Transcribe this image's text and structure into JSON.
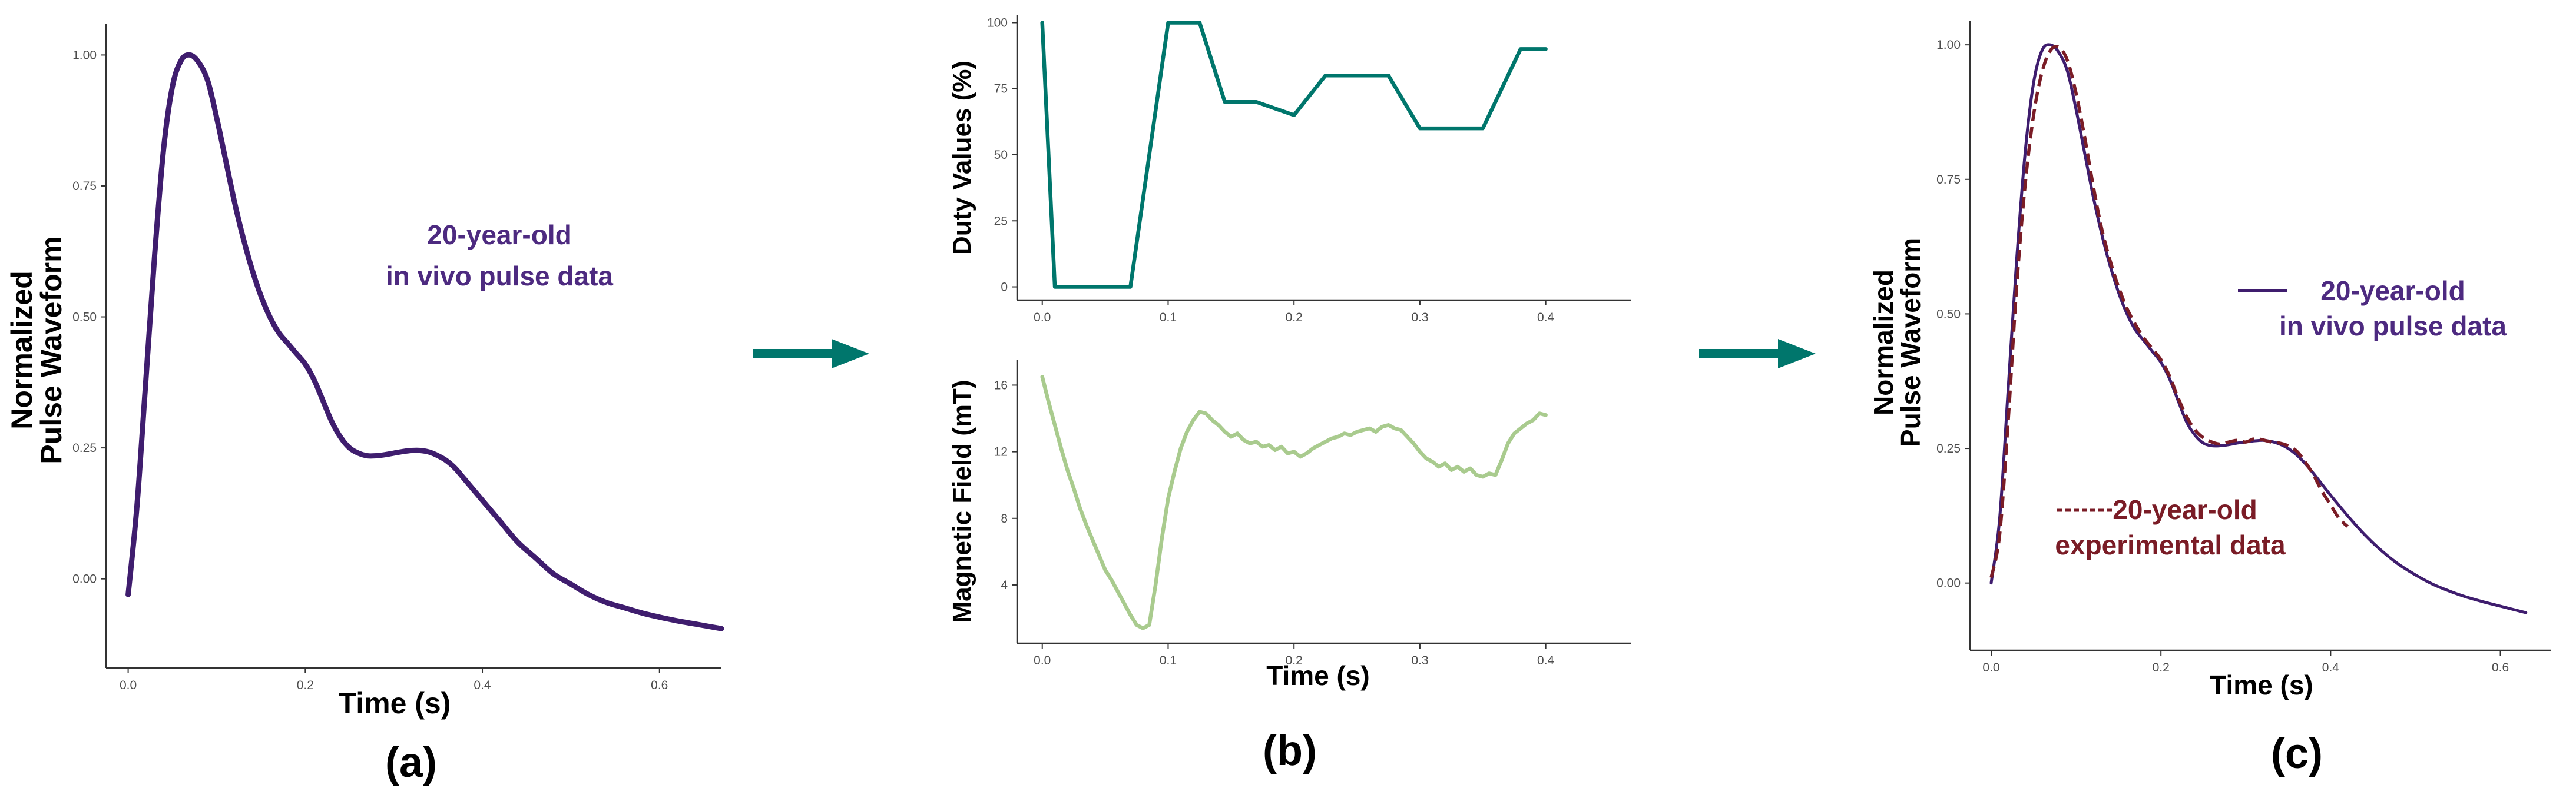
{
  "colors": {
    "purple": "#3f1d6e",
    "teal": "#00766c",
    "green": "#a9cb8e",
    "red": "#7a1c26",
    "annot_purple": "#4d2a80",
    "annot_red": "#7a1c26"
  },
  "panel_labels": [
    "(a)",
    "(b)",
    "(c)"
  ],
  "chart_data": [
    {
      "type": "line",
      "panel": "(a)",
      "xlabel": "Time (s)",
      "ylabel_lines": [
        "Normalized",
        "Pulse Waveform"
      ],
      "xlim": [
        -0.025,
        0.67
      ],
      "ylim": [
        -0.17,
        1.06
      ],
      "xticks": [
        0.0,
        0.2,
        0.4,
        0.6
      ],
      "xtick_labels": [
        "0.0",
        "0.2",
        "0.4",
        "0.6"
      ],
      "yticks": [
        0.0,
        0.25,
        0.5,
        0.75,
        1.0
      ],
      "ytick_labels": [
        "0.00",
        "0.25",
        "0.50",
        "0.75",
        "1.00"
      ],
      "annotation": [
        "20-year-old",
        "in vivo pulse data"
      ],
      "series": [
        {
          "name": "20-year-old in vivo pulse data",
          "x": [
            0.0,
            0.01,
            0.02,
            0.03,
            0.04,
            0.05,
            0.06,
            0.07,
            0.08,
            0.09,
            0.1,
            0.11,
            0.12,
            0.13,
            0.14,
            0.15,
            0.16,
            0.17,
            0.18,
            0.19,
            0.2,
            0.21,
            0.22,
            0.23,
            0.24,
            0.25,
            0.26,
            0.27,
            0.28,
            0.29,
            0.3,
            0.31,
            0.32,
            0.33,
            0.34,
            0.35,
            0.36,
            0.37,
            0.38,
            0.39,
            0.4,
            0.42,
            0.44,
            0.46,
            0.48,
            0.5,
            0.52,
            0.54,
            0.56,
            0.58,
            0.6,
            0.62,
            0.64,
            0.67
          ],
          "y": [
            -0.03,
            0.14,
            0.38,
            0.62,
            0.82,
            0.94,
            0.99,
            1.0,
            0.985,
            0.95,
            0.88,
            0.8,
            0.72,
            0.65,
            0.59,
            0.54,
            0.5,
            0.47,
            0.45,
            0.43,
            0.41,
            0.38,
            0.34,
            0.3,
            0.27,
            0.25,
            0.24,
            0.235,
            0.235,
            0.237,
            0.24,
            0.243,
            0.245,
            0.245,
            0.242,
            0.235,
            0.225,
            0.21,
            0.19,
            0.17,
            0.15,
            0.11,
            0.07,
            0.04,
            0.01,
            -0.01,
            -0.03,
            -0.045,
            -0.055,
            -0.065,
            -0.073,
            -0.08,
            -0.086,
            -0.095
          ]
        }
      ]
    },
    {
      "type": "line",
      "panel": "(b) top",
      "xlabel": "",
      "ylabel": "Duty Values (%)",
      "xlim": [
        -0.02,
        0.468
      ],
      "ylim": [
        -5,
        103
      ],
      "xticks": [
        0.0,
        0.1,
        0.2,
        0.3,
        0.4
      ],
      "xtick_labels": [
        "0.0",
        "0.1",
        "0.2",
        "0.3",
        "0.4"
      ],
      "yticks": [
        0,
        25,
        50,
        75,
        100
      ],
      "ytick_labels": [
        "0",
        "25",
        "50",
        "75",
        "100"
      ],
      "series": [
        {
          "name": "Duty Values",
          "x": [
            0.0,
            0.01,
            0.07,
            0.1,
            0.125,
            0.145,
            0.17,
            0.2,
            0.225,
            0.275,
            0.3,
            0.35,
            0.38,
            0.4
          ],
          "y": [
            100,
            0,
            0,
            100,
            100,
            70,
            70,
            65,
            80,
            80,
            60,
            60,
            90,
            90
          ]
        }
      ]
    },
    {
      "type": "line",
      "panel": "(b) bottom",
      "xlabel": "Time (s)",
      "ylabel": "Magnetic Field (mT)",
      "xlim": [
        -0.02,
        0.468
      ],
      "ylim": [
        0.5,
        17.5
      ],
      "xticks": [
        0.0,
        0.1,
        0.2,
        0.3,
        0.4
      ],
      "xtick_labels": [
        "0.0",
        "0.1",
        "0.2",
        "0.3",
        "0.4"
      ],
      "yticks": [
        4,
        8,
        12,
        16
      ],
      "ytick_labels": [
        "4",
        "8",
        "12",
        "16"
      ],
      "series": [
        {
          "name": "Magnetic Field",
          "x": [
            0.0,
            0.005,
            0.01,
            0.015,
            0.02,
            0.025,
            0.03,
            0.035,
            0.04,
            0.045,
            0.05,
            0.055,
            0.06,
            0.065,
            0.07,
            0.075,
            0.08,
            0.085,
            0.09,
            0.095,
            0.1,
            0.105,
            0.11,
            0.115,
            0.12,
            0.125,
            0.13,
            0.135,
            0.14,
            0.145,
            0.15,
            0.155,
            0.16,
            0.165,
            0.17,
            0.175,
            0.18,
            0.185,
            0.19,
            0.195,
            0.2,
            0.205,
            0.21,
            0.215,
            0.22,
            0.225,
            0.23,
            0.235,
            0.24,
            0.245,
            0.25,
            0.255,
            0.26,
            0.265,
            0.27,
            0.275,
            0.28,
            0.285,
            0.29,
            0.295,
            0.3,
            0.305,
            0.31,
            0.315,
            0.32,
            0.325,
            0.33,
            0.335,
            0.34,
            0.345,
            0.35,
            0.355,
            0.36,
            0.365,
            0.37,
            0.375,
            0.38,
            0.385,
            0.39,
            0.395,
            0.4
          ],
          "y": [
            16.5,
            15.0,
            13.6,
            12.2,
            10.9,
            9.8,
            8.6,
            7.6,
            6.7,
            5.8,
            4.9,
            4.3,
            3.6,
            2.9,
            2.2,
            1.6,
            1.4,
            1.6,
            4.0,
            6.8,
            9.2,
            10.8,
            12.2,
            13.2,
            13.9,
            14.4,
            14.3,
            13.9,
            13.6,
            13.2,
            12.9,
            13.1,
            12.7,
            12.5,
            12.6,
            12.3,
            12.4,
            12.1,
            12.3,
            11.9,
            12.0,
            11.7,
            11.9,
            12.2,
            12.4,
            12.6,
            12.8,
            12.9,
            13.1,
            13.0,
            13.2,
            13.3,
            13.4,
            13.2,
            13.5,
            13.6,
            13.4,
            13.3,
            12.9,
            12.5,
            12.0,
            11.6,
            11.4,
            11.1,
            11.3,
            10.9,
            11.1,
            10.8,
            11.0,
            10.6,
            10.5,
            10.7,
            10.6,
            11.5,
            12.5,
            13.1,
            13.4,
            13.7,
            13.9,
            14.3,
            14.2
          ]
        }
      ]
    },
    {
      "type": "line",
      "panel": "(c)",
      "xlabel": "Time (s)",
      "ylabel_lines": [
        "Normalized",
        "Pulse Waveform"
      ],
      "xlim": [
        -0.025,
        0.66
      ],
      "ylim": [
        -0.125,
        1.045
      ],
      "xticks": [
        0.0,
        0.2,
        0.4,
        0.6
      ],
      "xtick_labels": [
        "0.0",
        "0.2",
        "0.4",
        "0.6"
      ],
      "yticks": [
        0.0,
        0.25,
        0.5,
        0.75,
        1.0
      ],
      "ytick_labels": [
        "0.00",
        "0.25",
        "0.50",
        "0.75",
        "1.00"
      ],
      "legend": {
        "placement": "right",
        "solid_label_lines": [
          "20-year-old",
          "in vivo pulse data"
        ],
        "dashed_label_lines": [
          "20-year-old",
          "experimental data"
        ]
      },
      "series": [
        {
          "name": "20-year-old in vivo pulse data",
          "style": "solid",
          "x": [
            0.0,
            0.01,
            0.02,
            0.03,
            0.04,
            0.05,
            0.06,
            0.07,
            0.08,
            0.09,
            0.1,
            0.11,
            0.12,
            0.13,
            0.14,
            0.15,
            0.16,
            0.17,
            0.18,
            0.19,
            0.2,
            0.21,
            0.22,
            0.23,
            0.24,
            0.25,
            0.26,
            0.27,
            0.28,
            0.29,
            0.3,
            0.31,
            0.32,
            0.33,
            0.34,
            0.35,
            0.36,
            0.37,
            0.38,
            0.39,
            0.4,
            0.42,
            0.44,
            0.46,
            0.48,
            0.5,
            0.52,
            0.54,
            0.56,
            0.58,
            0.6,
            0.63
          ],
          "y": [
            0.0,
            0.12,
            0.36,
            0.6,
            0.8,
            0.93,
            0.99,
            1.0,
            0.985,
            0.95,
            0.88,
            0.8,
            0.72,
            0.65,
            0.59,
            0.54,
            0.5,
            0.47,
            0.45,
            0.43,
            0.41,
            0.38,
            0.34,
            0.3,
            0.275,
            0.26,
            0.255,
            0.255,
            0.257,
            0.26,
            0.262,
            0.264,
            0.265,
            0.263,
            0.258,
            0.25,
            0.238,
            0.222,
            0.203,
            0.183,
            0.163,
            0.125,
            0.09,
            0.06,
            0.035,
            0.015,
            -0.002,
            -0.015,
            -0.026,
            -0.035,
            -0.043,
            -0.055
          ]
        },
        {
          "name": "20-year-old experimental data",
          "style": "dashed",
          "x": [
            0.0,
            0.01,
            0.02,
            0.03,
            0.04,
            0.05,
            0.06,
            0.07,
            0.08,
            0.09,
            0.1,
            0.11,
            0.12,
            0.13,
            0.14,
            0.15,
            0.16,
            0.17,
            0.18,
            0.19,
            0.2,
            0.21,
            0.22,
            0.23,
            0.24,
            0.25,
            0.26,
            0.27,
            0.28,
            0.29,
            0.3,
            0.31,
            0.32,
            0.33,
            0.34,
            0.35,
            0.36,
            0.37,
            0.38,
            0.39,
            0.4,
            0.41,
            0.42
          ],
          "y": [
            0.01,
            0.09,
            0.3,
            0.55,
            0.74,
            0.87,
            0.95,
            0.99,
            0.995,
            0.97,
            0.91,
            0.83,
            0.74,
            0.66,
            0.6,
            0.55,
            0.51,
            0.48,
            0.455,
            0.435,
            0.415,
            0.385,
            0.345,
            0.31,
            0.285,
            0.27,
            0.262,
            0.258,
            0.262,
            0.265,
            0.262,
            0.268,
            0.266,
            0.262,
            0.26,
            0.255,
            0.245,
            0.225,
            0.2,
            0.17,
            0.145,
            0.12,
            0.105
          ]
        }
      ]
    }
  ]
}
